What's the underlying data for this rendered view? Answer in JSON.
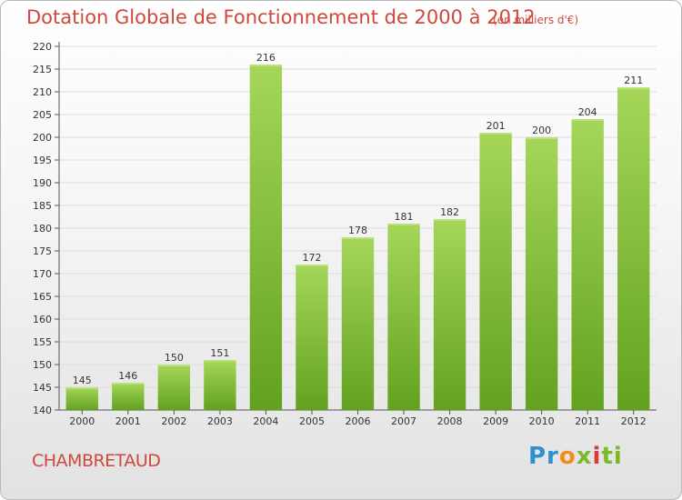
{
  "title": "Dotation Globale de Fonctionnement de 2000 à 2012",
  "subtitle": "(en milliers d'€)",
  "commune": "CHAMBRETAUD",
  "logo": {
    "p1": "Pr",
    "p2": "o",
    "p3": "x",
    "p4": "i",
    "p5": "ti"
  },
  "colors": {
    "bar_top": "#a5d65a",
    "bar_bottom": "#62a21f",
    "title": "#d0473b",
    "grid": "#dddddd"
  },
  "chart_data": {
    "type": "bar",
    "title": "Dotation Globale de Fonctionnement de 2000 à 2012",
    "subtitle": "(en milliers d'€)",
    "xlabel": "",
    "ylabel": "",
    "categories": [
      "2000",
      "2001",
      "2002",
      "2003",
      "2004",
      "2005",
      "2006",
      "2007",
      "2008",
      "2009",
      "2010",
      "2011",
      "2012"
    ],
    "values": [
      145,
      146,
      150,
      151,
      216,
      172,
      178,
      181,
      182,
      201,
      200,
      204,
      211
    ],
    "ylim": [
      140,
      220
    ],
    "ytick_step": 5,
    "grid": true,
    "legend": "none"
  }
}
